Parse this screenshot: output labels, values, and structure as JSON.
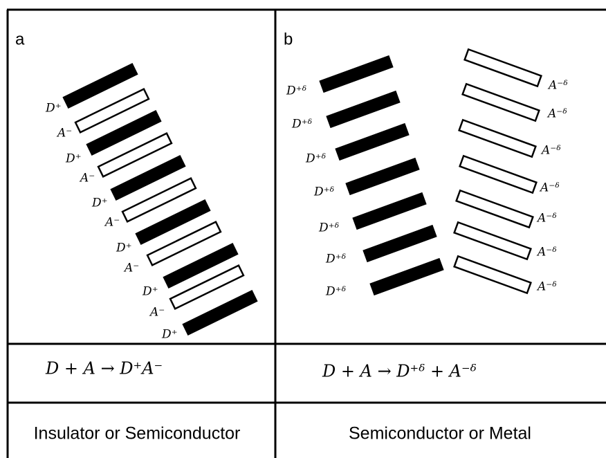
{
  "panel_a": {
    "label": "a",
    "stack_labels": [
      "D⁺",
      "A⁻",
      "D⁺",
      "A⁻",
      "D⁺",
      "A⁻",
      "D⁺",
      "A⁻",
      "D⁺",
      "A⁻",
      "D⁺"
    ],
    "equation": "D + A → D⁺A⁻",
    "classification": "Insulator or Semiconductor"
  },
  "panel_b": {
    "label": "b",
    "donor_labels": [
      "D⁺ᵟ",
      "D⁺ᵟ",
      "D⁺ᵟ",
      "D⁺ᵟ",
      "D⁺ᵟ",
      "D⁺ᵟ",
      "D⁺ᵟ"
    ],
    "acceptor_labels": [
      "A⁻ᵟ",
      "A⁻ᵟ",
      "A⁻ᵟ",
      "A⁻ᵟ",
      "A⁻ᵟ",
      "A⁻ᵟ",
      "A⁻ᵟ"
    ],
    "equation": "D + A → D⁺ᵟ + A⁻ᵟ",
    "classification": "Semiconductor or Metal"
  }
}
